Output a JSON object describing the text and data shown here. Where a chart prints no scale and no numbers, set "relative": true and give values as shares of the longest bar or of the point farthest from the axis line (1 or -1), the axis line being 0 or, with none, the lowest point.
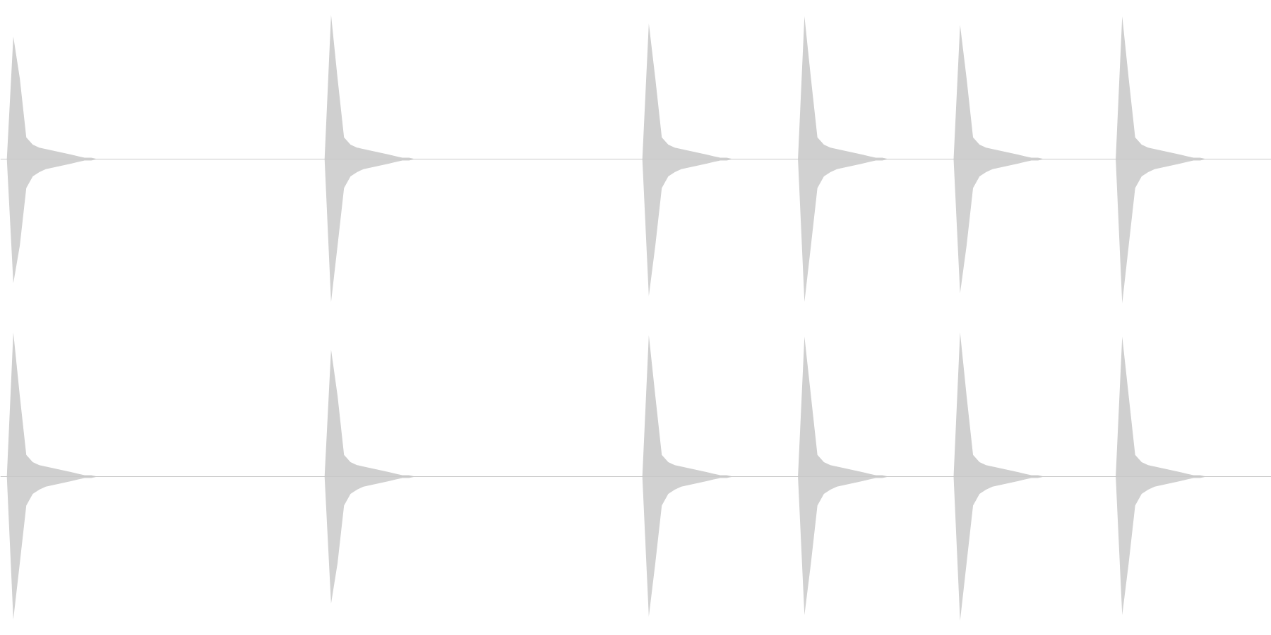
{
  "chart_data": [
    {
      "type": "area",
      "relative": true,
      "categories": [
        null,
        null,
        null,
        null,
        null,
        null,
        null,
        null,
        null,
        null,
        null,
        null,
        null,
        null,
        null,
        null,
        null,
        null,
        null,
        null,
        null,
        null,
        null,
        null,
        null,
        null,
        null,
        null,
        null,
        null,
        null,
        null,
        null,
        null,
        null,
        null,
        null,
        null,
        null,
        null,
        null,
        null,
        null,
        null,
        null,
        null,
        null,
        null,
        null,
        null,
        null,
        null,
        null,
        null,
        null,
        null,
        null,
        null,
        null,
        null,
        null,
        null,
        null,
        null,
        null,
        null,
        null,
        null,
        null,
        null,
        null,
        null,
        null,
        null,
        null,
        null,
        null,
        null,
        null,
        null,
        null,
        null,
        null,
        null,
        null,
        null,
        null,
        null,
        null,
        null,
        null,
        null,
        null,
        null,
        null,
        null,
        null,
        null,
        null,
        null,
        null,
        null,
        null,
        null,
        null,
        null,
        null,
        null,
        null,
        null,
        null,
        null,
        null,
        null,
        null,
        null,
        null,
        null,
        null,
        null,
        null,
        null,
        null,
        null,
        null,
        null,
        null,
        null,
        null,
        null,
        null,
        null,
        null,
        null,
        null,
        null,
        null,
        null,
        null,
        null,
        null,
        null,
        null,
        null,
        null,
        null,
        null,
        null,
        null,
        null,
        null,
        null,
        null,
        null,
        null,
        null,
        null,
        null,
        null,
        null,
        null,
        null,
        null,
        null,
        null,
        null,
        null,
        null,
        null,
        null,
        null,
        null,
        null,
        null,
        null,
        null,
        null,
        null,
        null,
        null,
        null,
        null,
        null,
        null,
        null,
        null,
        null,
        null,
        null,
        null,
        null,
        null,
        null,
        null,
        null,
        null
      ],
      "series": [
        {
          "color": "#cfcfcf",
          "values": [
            0,
            0,
            0.85,
            0.56,
            0.15,
            0.1,
            0.08,
            0.07,
            0.06,
            0.05,
            0.04,
            0.03,
            0.02,
            0.01,
            0.01,
            0,
            0,
            0,
            0,
            0,
            0,
            0,
            0,
            0,
            0,
            0,
            0,
            0,
            0,
            0,
            0,
            0,
            0,
            0,
            0,
            0,
            0,
            0,
            0,
            0,
            0,
            0,
            0,
            0,
            0,
            0,
            0,
            0,
            0,
            0,
            0,
            1,
            0.56,
            0.15,
            0.1,
            0.08,
            0.07,
            0.06,
            0.05,
            0.04,
            0.03,
            0.02,
            0.01,
            0.01,
            0,
            0,
            0,
            0,
            0,
            0,
            0,
            0,
            0,
            0,
            0,
            0,
            0,
            0,
            0,
            0,
            0,
            0,
            0,
            0,
            0,
            0,
            0,
            0,
            0,
            0,
            0,
            0,
            0,
            0,
            0,
            0,
            0,
            0,
            0,
            0,
            0.94,
            0.56,
            0.15,
            0.1,
            0.08,
            0.07,
            0.06,
            0.05,
            0.04,
            0.03,
            0.02,
            0.01,
            0.01,
            0,
            0,
            0,
            0,
            0,
            0,
            0,
            0,
            0,
            0,
            0,
            0.99,
            0.56,
            0.15,
            0.1,
            0.08,
            0.07,
            0.06,
            0.05,
            0.04,
            0.03,
            0.02,
            0.01,
            0.01,
            0,
            0,
            0,
            0,
            0,
            0,
            0,
            0,
            0,
            0,
            0,
            0.93,
            0.56,
            0.15,
            0.1,
            0.08,
            0.07,
            0.06,
            0.05,
            0.04,
            0.03,
            0.02,
            0.01,
            0.01,
            0,
            0,
            0,
            0,
            0,
            0,
            0,
            0,
            0,
            0,
            0,
            0,
            0.99,
            0.56,
            0.15,
            0.1,
            0.08,
            0.07,
            0.06,
            0.05,
            0.04,
            0.03,
            0.02,
            0.01,
            0.01,
            0,
            0,
            0,
            0,
            0,
            0,
            0,
            0,
            0,
            0
          ]
        },
        {
          "color": "#d1d1d1",
          "values": [
            0,
            0,
            -0.86,
            -0.6,
            -0.2,
            -0.12,
            -0.09,
            -0.07,
            -0.06,
            -0.05,
            -0.04,
            -0.03,
            -0.02,
            -0.01,
            -0.01,
            0,
            0,
            0,
            0,
            0,
            0,
            0,
            0,
            0,
            0,
            0,
            0,
            0,
            0,
            0,
            0,
            0,
            0,
            0,
            0,
            0,
            0,
            0,
            0,
            0,
            0,
            0,
            0,
            0,
            0,
            0,
            0,
            0,
            0,
            0,
            0,
            -0.99,
            -0.6,
            -0.2,
            -0.12,
            -0.09,
            -0.07,
            -0.06,
            -0.05,
            -0.04,
            -0.03,
            -0.02,
            -0.01,
            -0.01,
            0,
            0,
            0,
            0,
            0,
            0,
            0,
            0,
            0,
            0,
            0,
            0,
            0,
            0,
            0,
            0,
            0,
            0,
            0,
            0,
            0,
            0,
            0,
            0,
            0,
            0,
            0,
            0,
            0,
            0,
            0,
            0,
            0,
            0,
            0,
            0,
            -0.95,
            -0.6,
            -0.2,
            -0.12,
            -0.09,
            -0.07,
            -0.06,
            -0.05,
            -0.04,
            -0.03,
            -0.02,
            -0.01,
            -0.01,
            0,
            0,
            0,
            0,
            0,
            0,
            0,
            0,
            0,
            0,
            0,
            -0.99,
            -0.6,
            -0.2,
            -0.12,
            -0.09,
            -0.07,
            -0.06,
            -0.05,
            -0.04,
            -0.03,
            -0.02,
            -0.01,
            -0.01,
            0,
            0,
            0,
            0,
            0,
            0,
            0,
            0,
            0,
            0,
            0,
            -0.93,
            -0.6,
            -0.2,
            -0.12,
            -0.09,
            -0.07,
            -0.06,
            -0.05,
            -0.04,
            -0.03,
            -0.02,
            -0.01,
            -0.01,
            0,
            0,
            0,
            0,
            0,
            0,
            0,
            0,
            0,
            0,
            0,
            0,
            -1,
            -0.6,
            -0.2,
            -0.12,
            -0.09,
            -0.07,
            -0.06,
            -0.05,
            -0.04,
            -0.03,
            -0.02,
            -0.01,
            -0.01,
            0,
            0,
            0,
            0,
            0,
            0,
            0,
            0,
            0,
            0
          ]
        }
      ]
    },
    {
      "type": "area",
      "relative": true,
      "categories": [
        null,
        null,
        null,
        null,
        null,
        null,
        null,
        null,
        null,
        null,
        null,
        null,
        null,
        null,
        null,
        null,
        null,
        null,
        null,
        null,
        null,
        null,
        null,
        null,
        null,
        null,
        null,
        null,
        null,
        null,
        null,
        null,
        null,
        null,
        null,
        null,
        null,
        null,
        null,
        null,
        null,
        null,
        null,
        null,
        null,
        null,
        null,
        null,
        null,
        null,
        null,
        null,
        null,
        null,
        null,
        null,
        null,
        null,
        null,
        null,
        null,
        null,
        null,
        null,
        null,
        null,
        null,
        null,
        null,
        null,
        null,
        null,
        null,
        null,
        null,
        null,
        null,
        null,
        null,
        null,
        null,
        null,
        null,
        null,
        null,
        null,
        null,
        null,
        null,
        null,
        null,
        null,
        null,
        null,
        null,
        null,
        null,
        null,
        null,
        null,
        null,
        null,
        null,
        null,
        null,
        null,
        null,
        null,
        null,
        null,
        null,
        null,
        null,
        null,
        null,
        null,
        null,
        null,
        null,
        null,
        null,
        null,
        null,
        null,
        null,
        null,
        null,
        null,
        null,
        null,
        null,
        null,
        null,
        null,
        null,
        null,
        null,
        null,
        null,
        null,
        null,
        null,
        null,
        null,
        null,
        null,
        null,
        null,
        null,
        null,
        null,
        null,
        null,
        null,
        null,
        null,
        null,
        null,
        null,
        null,
        null,
        null,
        null,
        null,
        null,
        null,
        null,
        null,
        null,
        null,
        null,
        null,
        null,
        null,
        null,
        null,
        null,
        null,
        null,
        null,
        null,
        null,
        null,
        null,
        null,
        null,
        null,
        null,
        null,
        null,
        null,
        null,
        null,
        null,
        null,
        null
      ],
      "series": [
        {
          "color": "#cfcfcf",
          "values": [
            0,
            0,
            1,
            0.56,
            0.15,
            0.1,
            0.08,
            0.07,
            0.06,
            0.05,
            0.04,
            0.03,
            0.02,
            0.01,
            0.01,
            0,
            0,
            0,
            0,
            0,
            0,
            0,
            0,
            0,
            0,
            0,
            0,
            0,
            0,
            0,
            0,
            0,
            0,
            0,
            0,
            0,
            0,
            0,
            0,
            0,
            0,
            0,
            0,
            0,
            0,
            0,
            0,
            0,
            0,
            0,
            0,
            0.88,
            0.56,
            0.15,
            0.1,
            0.08,
            0.07,
            0.06,
            0.05,
            0.04,
            0.03,
            0.02,
            0.01,
            0.01,
            0,
            0,
            0,
            0,
            0,
            0,
            0,
            0,
            0,
            0,
            0,
            0,
            0,
            0,
            0,
            0,
            0,
            0,
            0,
            0,
            0,
            0,
            0,
            0,
            0,
            0,
            0,
            0,
            0,
            0,
            0,
            0,
            0,
            0,
            0,
            0,
            0.98,
            0.56,
            0.15,
            0.1,
            0.08,
            0.07,
            0.06,
            0.05,
            0.04,
            0.03,
            0.02,
            0.01,
            0.01,
            0,
            0,
            0,
            0,
            0,
            0,
            0,
            0,
            0,
            0,
            0,
            0.97,
            0.56,
            0.15,
            0.1,
            0.08,
            0.07,
            0.06,
            0.05,
            0.04,
            0.03,
            0.02,
            0.01,
            0.01,
            0,
            0,
            0,
            0,
            0,
            0,
            0,
            0,
            0,
            0,
            0,
            1,
            0.56,
            0.15,
            0.1,
            0.08,
            0.07,
            0.06,
            0.05,
            0.04,
            0.03,
            0.02,
            0.01,
            0.01,
            0,
            0,
            0,
            0,
            0,
            0,
            0,
            0,
            0,
            0,
            0,
            0,
            0.97,
            0.56,
            0.15,
            0.1,
            0.08,
            0.07,
            0.06,
            0.05,
            0.04,
            0.03,
            0.02,
            0.01,
            0.01,
            0,
            0,
            0,
            0,
            0,
            0,
            0,
            0,
            0,
            0
          ]
        },
        {
          "color": "#d1d1d1",
          "values": [
            0,
            0,
            -0.99,
            -0.6,
            -0.2,
            -0.12,
            -0.09,
            -0.07,
            -0.06,
            -0.05,
            -0.04,
            -0.03,
            -0.02,
            -0.01,
            -0.01,
            0,
            0,
            0,
            0,
            0,
            0,
            0,
            0,
            0,
            0,
            0,
            0,
            0,
            0,
            0,
            0,
            0,
            0,
            0,
            0,
            0,
            0,
            0,
            0,
            0,
            0,
            0,
            0,
            0,
            0,
            0,
            0,
            0,
            0,
            0,
            0,
            -0.88,
            -0.6,
            -0.2,
            -0.12,
            -0.09,
            -0.07,
            -0.06,
            -0.05,
            -0.04,
            -0.03,
            -0.02,
            -0.01,
            -0.01,
            0,
            0,
            0,
            0,
            0,
            0,
            0,
            0,
            0,
            0,
            0,
            0,
            0,
            0,
            0,
            0,
            0,
            0,
            0,
            0,
            0,
            0,
            0,
            0,
            0,
            0,
            0,
            0,
            0,
            0,
            0,
            0,
            0,
            0,
            0,
            0,
            -0.97,
            -0.6,
            -0.2,
            -0.12,
            -0.09,
            -0.07,
            -0.06,
            -0.05,
            -0.04,
            -0.03,
            -0.02,
            -0.01,
            -0.01,
            0,
            0,
            0,
            0,
            0,
            0,
            0,
            0,
            0,
            0,
            0,
            -0.96,
            -0.6,
            -0.2,
            -0.12,
            -0.09,
            -0.07,
            -0.06,
            -0.05,
            -0.04,
            -0.03,
            -0.02,
            -0.01,
            -0.01,
            0,
            0,
            0,
            0,
            0,
            0,
            0,
            0,
            0,
            0,
            0,
            -1,
            -0.6,
            -0.2,
            -0.12,
            -0.09,
            -0.07,
            -0.06,
            -0.05,
            -0.04,
            -0.03,
            -0.02,
            -0.01,
            -0.01,
            0,
            0,
            0,
            0,
            0,
            0,
            0,
            0,
            0,
            0,
            0,
            0,
            -0.96,
            -0.6,
            -0.2,
            -0.12,
            -0.09,
            -0.07,
            -0.06,
            -0.05,
            -0.04,
            -0.03,
            -0.02,
            -0.01,
            -0.01,
            0,
            0,
            0,
            0,
            0,
            0,
            0,
            0,
            0,
            0
          ]
        }
      ]
    }
  ]
}
